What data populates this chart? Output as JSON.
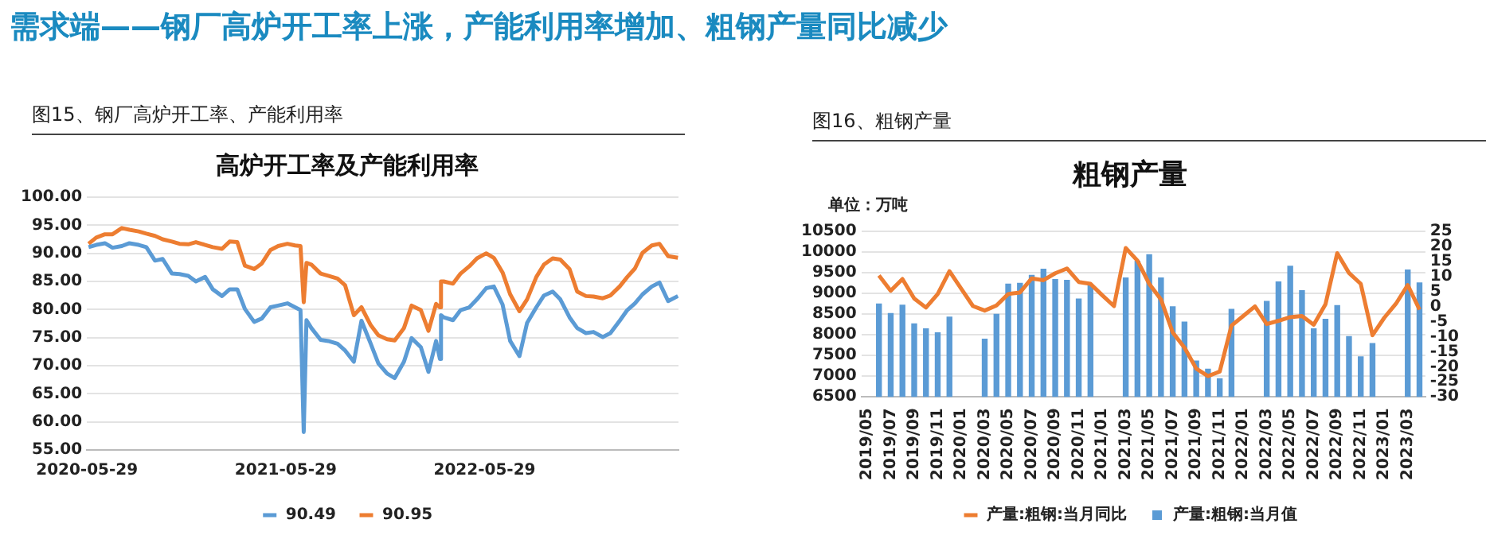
{
  "chart_data": [
    {
      "type": "line",
      "title": "高炉开工率及产能利用率",
      "annotations": [
        "需求端——钢厂高炉开工率上涨，产能利用率增加、粗钢产量同比减少",
        "图15、钢厂高炉开工率、产能利用率"
      ],
      "x": [
        "2020-06-01",
        "2020-06-15",
        "2020-07-01",
        "2020-07-15",
        "2020-08-01",
        "2020-08-15",
        "2020-09-01",
        "2020-09-15",
        "2020-10-01",
        "2020-10-15",
        "2020-11-01",
        "2020-11-15",
        "2020-12-01",
        "2020-12-15",
        "2021-01-01",
        "2021-01-15",
        "2021-02-01",
        "2021-02-15",
        "2021-03-01",
        "2021-03-15",
        "2021-04-01",
        "2021-04-15",
        "2021-05-01",
        "2021-05-15",
        "2021-06-01",
        "2021-06-15",
        "2021-06-25",
        "2021-07-01",
        "2021-07-06",
        "2021-07-15",
        "2021-08-01",
        "2021-08-15",
        "2021-09-01",
        "2021-09-15",
        "2021-10-01",
        "2021-10-15",
        "2021-11-01",
        "2021-11-15",
        "2021-12-01",
        "2021-12-15",
        "2022-01-01",
        "2022-01-15",
        "2022-02-01",
        "2022-02-15",
        "2022-03-01",
        "2022-03-08",
        "2022-03-10",
        "2022-03-15",
        "2022-04-01",
        "2022-04-15",
        "2022-05-01",
        "2022-05-15",
        "2022-06-01",
        "2022-06-15",
        "2022-07-01",
        "2022-07-15",
        "2022-08-01",
        "2022-08-15",
        "2022-09-01",
        "2022-09-15",
        "2022-10-01",
        "2022-10-15",
        "2022-11-01",
        "2022-11-15",
        "2022-12-01",
        "2022-12-15",
        "2023-01-01",
        "2023-01-15",
        "2023-02-01",
        "2023-02-15",
        "2023-03-01",
        "2023-03-15",
        "2023-04-01",
        "2023-04-15",
        "2023-05-01",
        "2023-05-19"
      ],
      "series": [
        {
          "name": "90.49",
          "color": "#5b9bd5",
          "values": [
            91.1,
            91.5,
            91.8,
            91.0,
            91.3,
            91.8,
            91.5,
            91.1,
            88.7,
            89.0,
            86.4,
            86.3,
            86.0,
            85.0,
            85.8,
            83.6,
            82.4,
            83.6,
            83.6,
            80.1,
            77.8,
            78.4,
            80.4,
            80.7,
            81.1,
            80.4,
            79.9,
            58.2,
            78.1,
            76.7,
            74.6,
            74.4,
            73.9,
            72.7,
            70.7,
            78.0,
            73.9,
            70.4,
            68.6,
            67.8,
            70.7,
            74.9,
            73.3,
            68.9,
            74.4,
            71.2,
            79.0,
            78.6,
            78.1,
            79.9,
            80.4,
            81.8,
            83.8,
            84.1,
            80.9,
            74.4,
            71.7,
            77.6,
            80.4,
            82.5,
            83.2,
            81.8,
            78.6,
            76.7,
            75.8,
            76.0,
            75.1,
            75.8,
            78.0,
            79.9,
            81.1,
            82.7,
            84.1,
            84.8,
            81.5,
            82.4
          ]
        },
        {
          "name": "90.95",
          "color": "#ed7d31",
          "values": [
            91.7,
            92.8,
            93.4,
            93.4,
            94.5,
            94.2,
            93.9,
            93.5,
            93.1,
            92.5,
            92.1,
            91.7,
            91.6,
            92.0,
            91.5,
            91.1,
            90.8,
            92.1,
            92.0,
            87.8,
            87.2,
            88.2,
            90.6,
            91.3,
            91.7,
            91.4,
            91.3,
            81.3,
            88.3,
            88.0,
            86.4,
            86.0,
            85.5,
            84.3,
            79.0,
            80.4,
            77.2,
            75.4,
            74.7,
            74.5,
            76.7,
            80.7,
            79.9,
            76.2,
            81.0,
            80.4,
            85.0,
            85.0,
            84.6,
            86.4,
            87.7,
            89.1,
            90.0,
            89.2,
            86.6,
            82.7,
            79.7,
            81.8,
            85.8,
            88.0,
            89.1,
            88.9,
            87.2,
            83.2,
            82.4,
            82.3,
            82.0,
            82.5,
            84.1,
            85.8,
            87.3,
            90.1,
            91.4,
            91.7,
            89.5,
            89.2
          ]
        }
      ],
      "xlim": [
        "2020-05-29",
        "2023-05-20"
      ],
      "xticks": [
        "2020-05-29",
        "2021-05-29",
        "2022-05-29"
      ],
      "ylim": [
        55,
        100
      ],
      "yticks": [
        {
          "value": 55,
          "label": "55.00"
        },
        {
          "value": 60,
          "label": "60.00"
        },
        {
          "value": 65,
          "label": "65.00"
        },
        {
          "value": 70,
          "label": "70.00"
        },
        {
          "value": 75,
          "label": "75.00"
        },
        {
          "value": 80,
          "label": "80.00"
        },
        {
          "value": 85,
          "label": "85.00"
        },
        {
          "value": 90,
          "label": "90.00"
        },
        {
          "value": 95,
          "label": "95.00"
        },
        {
          "value": 100,
          "label": "100.00"
        }
      ],
      "grid": "y",
      "legend": "bottom",
      "marker": "none",
      "line_style": "solid"
    },
    {
      "type": "bar",
      "title": "粗钢产量",
      "ylabel": "单位：万吨",
      "annotations": [
        "图16、粗钢产量"
      ],
      "categories": [
        "2019/05",
        null,
        "2019/07",
        null,
        "2019/09",
        null,
        "2019/11",
        null,
        "2020/01",
        null,
        "2020/03",
        null,
        "2020/05",
        null,
        "2020/07",
        null,
        "2020/09",
        null,
        "2020/11",
        null,
        "2021/01",
        null,
        "2021/03",
        null,
        "2021/05",
        null,
        "2021/07",
        null,
        "2021/09",
        null,
        "2021/11",
        null,
        "2022/01",
        null,
        "2022/03",
        null,
        "2022/05",
        null,
        "2022/07",
        null,
        "2022/09",
        null,
        "2022/11",
        null,
        "2023/01",
        null,
        "2023/03",
        null
      ],
      "series": [
        {
          "name": "产量:粗钢:当月值",
          "color": "#5b9bd5",
          "values": [
            null,
            8760,
            8530,
            8730,
            8280,
            8160,
            8060,
            8440,
            null,
            null,
            7910,
            8510,
            9240,
            9260,
            9450,
            9600,
            9350,
            9330,
            8880,
            9220,
            null,
            null,
            9390,
            9790,
            9950,
            9390,
            8690,
            8320,
            7380,
            7180,
            6950,
            8630,
            null,
            null,
            8820,
            9290,
            9670,
            9080,
            8160,
            8390,
            8720,
            7970,
            7480,
            7800,
            null,
            null,
            9580,
            9270
          ]
        },
        {
          "name": "产量:粗钢:当月同比",
          "type": "line",
          "axis": "y2",
          "color": "#ed7d31",
          "values": [
            null,
            10.4,
            5.3,
            9.2,
            2.7,
            -0.3,
            4.2,
            11.8,
            6.0,
            0.2,
            -1.3,
            0.4,
            4.2,
            4.7,
            9.4,
            8.8,
            11.1,
            12.7,
            8.2,
            7.6,
            3.8,
            0.2,
            19.5,
            15.3,
            7.6,
            2.4,
            -8.6,
            -13.6,
            -20.6,
            -23.1,
            -21.6,
            -6.3,
            -3.1,
            0.1,
            -5.8,
            -4.7,
            -3.5,
            -3.1,
            -6.0,
            0.8,
            17.8,
            11.2,
            7.6,
            -9.5,
            -3.7,
            1.0,
            7.2,
            -1.0
          ]
        }
      ],
      "ylim": [
        6500,
        10500
      ],
      "yticks": [
        6500,
        7000,
        7500,
        8000,
        8500,
        9000,
        9500,
        10000,
        10500
      ],
      "y2lim": [
        -30,
        25
      ],
      "y2ticks": [
        -30,
        -25,
        -20,
        -15,
        -10,
        -5,
        0,
        5,
        10,
        15,
        20,
        25
      ],
      "grid": "y",
      "legend": "bottom",
      "marker": "none",
      "line_style": "solid"
    }
  ]
}
